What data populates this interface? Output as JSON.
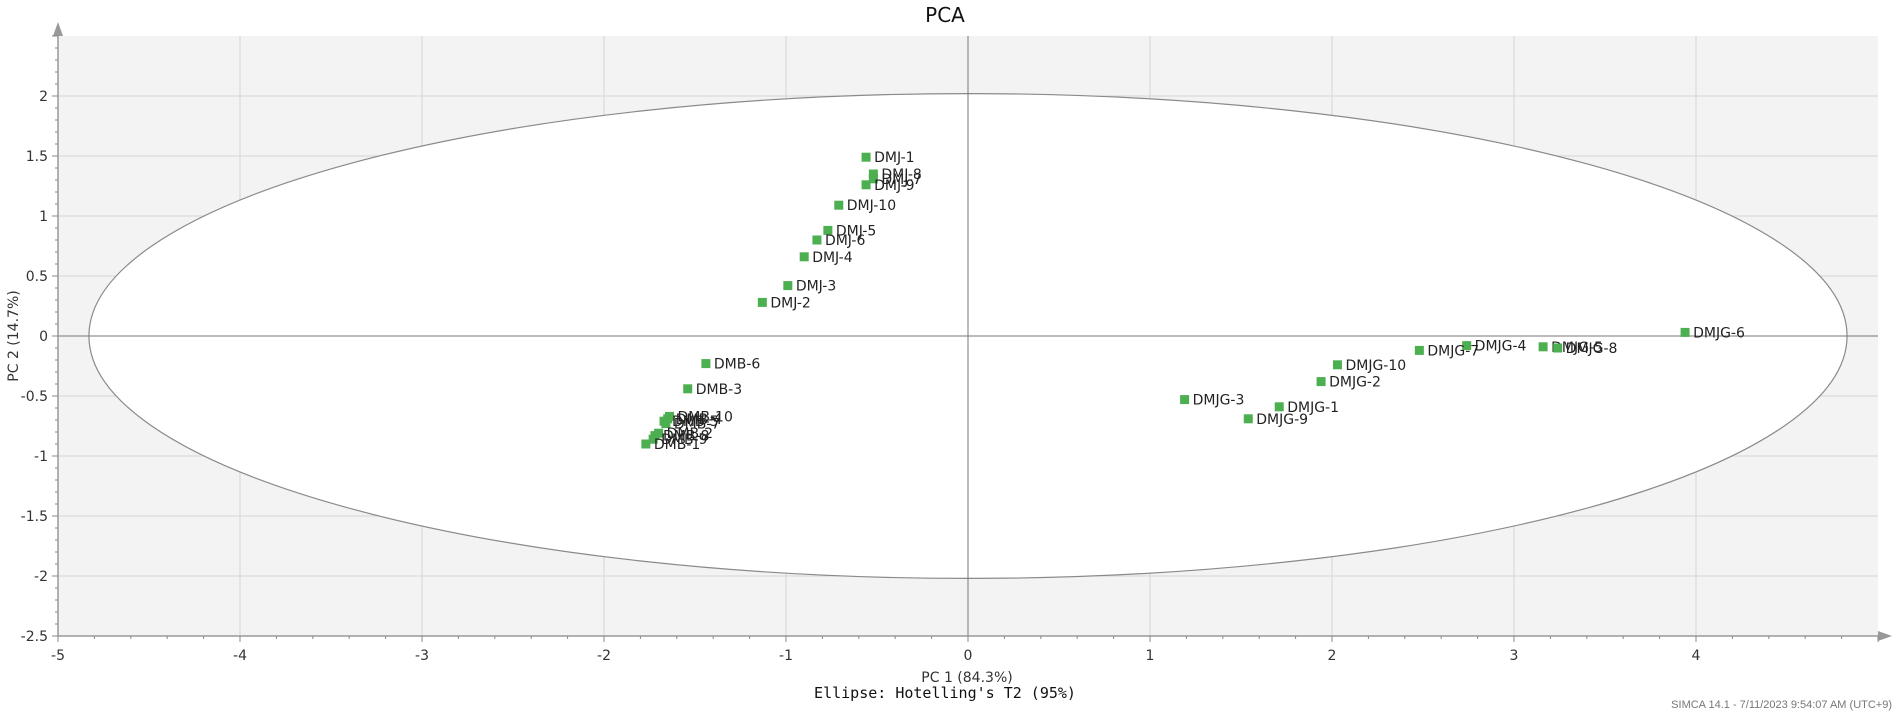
{
  "chart_data": {
    "type": "scatter",
    "title": "PCA",
    "xlabel": "PC 1 (84.3%)",
    "ylabel": "PC 2 (14.7%)",
    "subtitle": "Ellipse: Hotelling's T2 (95%)",
    "xlim": [
      -5,
      5
    ],
    "ylim": [
      -2.5,
      2.5
    ],
    "xticks": [
      -5,
      -4,
      -3,
      -2,
      -1,
      0,
      1,
      2,
      3,
      4
    ],
    "yticks": [
      -2.5,
      -2,
      -1.5,
      -1,
      -0.5,
      0,
      0.5,
      1,
      1.5,
      2
    ],
    "xtick_labels": [
      "-5",
      "-4",
      "-3",
      "-2",
      "-1",
      "0",
      "1",
      "2",
      "3",
      "4"
    ],
    "ytick_labels": [
      "-2.5",
      "-2",
      "-1.5",
      "-1",
      "-0.5",
      "0",
      "0.5",
      "1",
      "1.5",
      "2"
    ],
    "grid": true,
    "ellipse": {
      "center": [
        0,
        0
      ],
      "semi_axis_x": 4.83,
      "semi_axis_y": 2.02
    },
    "marker_color": "#4caf50",
    "points": [
      {
        "label": "DMJ-1",
        "x": -0.56,
        "y": 1.49
      },
      {
        "label": "DMJ-8",
        "x": -0.52,
        "y": 1.35
      },
      {
        "label": "DMJ-7",
        "x": -0.52,
        "y": 1.31
      },
      {
        "label": "DMJ-9",
        "x": -0.56,
        "y": 1.26
      },
      {
        "label": "DMJ-10",
        "x": -0.71,
        "y": 1.09
      },
      {
        "label": "DMJ-5",
        "x": -0.77,
        "y": 0.88
      },
      {
        "label": "DMJ-6",
        "x": -0.83,
        "y": 0.8
      },
      {
        "label": "DMJ-4",
        "x": -0.9,
        "y": 0.66
      },
      {
        "label": "DMJ-3",
        "x": -0.99,
        "y": 0.42
      },
      {
        "label": "DMJ-2",
        "x": -1.13,
        "y": 0.28
      },
      {
        "label": "DMB-6",
        "x": -1.44,
        "y": -0.23
      },
      {
        "label": "DMB-3",
        "x": -1.54,
        "y": -0.44
      },
      {
        "label": "DMB-10",
        "x": -1.64,
        "y": -0.67
      },
      {
        "label": "DMB-4",
        "x": -1.65,
        "y": -0.69
      },
      {
        "label": "DMB-5",
        "x": -1.67,
        "y": -0.71
      },
      {
        "label": "DMB-7",
        "x": -1.66,
        "y": -0.73
      },
      {
        "label": "DMB-2",
        "x": -1.7,
        "y": -0.81
      },
      {
        "label": "DMB-8",
        "x": -1.72,
        "y": -0.83
      },
      {
        "label": "DMB-9",
        "x": -1.73,
        "y": -0.86
      },
      {
        "label": "DMB-1",
        "x": -1.77,
        "y": -0.9
      },
      {
        "label": "DMJG-6",
        "x": 3.94,
        "y": 0.03
      },
      {
        "label": "DMJG-5",
        "x": 3.16,
        "y": -0.09
      },
      {
        "label": "DMJG-8",
        "x": 3.24,
        "y": -0.1
      },
      {
        "label": "DMJG-4",
        "x": 2.74,
        "y": -0.08
      },
      {
        "label": "DMJG-7",
        "x": 2.48,
        "y": -0.12
      },
      {
        "label": "DMJG-10",
        "x": 2.03,
        "y": -0.24
      },
      {
        "label": "DMJG-2",
        "x": 1.94,
        "y": -0.38
      },
      {
        "label": "DMJG-3",
        "x": 1.19,
        "y": -0.53
      },
      {
        "label": "DMJG-1",
        "x": 1.71,
        "y": -0.59
      },
      {
        "label": "DMJG-9",
        "x": 1.54,
        "y": -0.69
      }
    ]
  },
  "footer": "SIMCA 14.1 - 7/11/2023 9:54:07 AM (UTC+9)"
}
